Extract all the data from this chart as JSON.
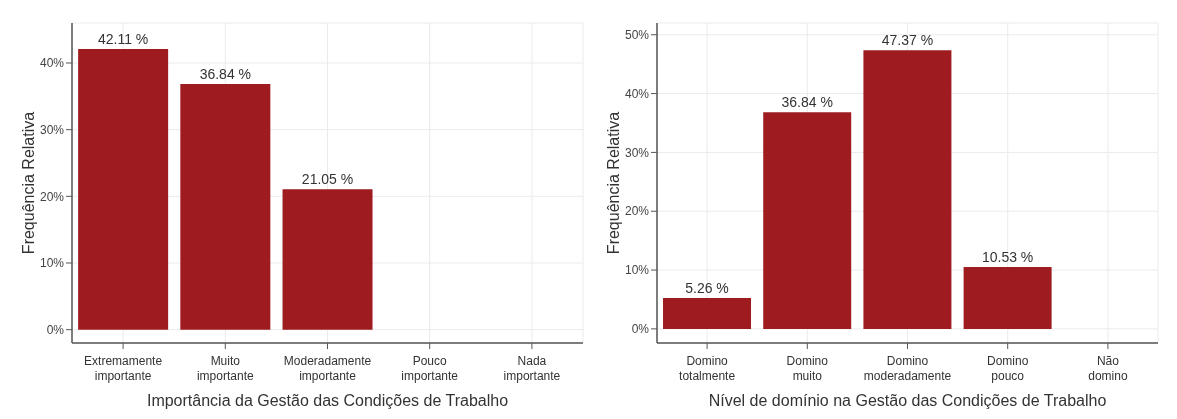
{
  "chart_data": [
    {
      "type": "bar",
      "xlabel": "Importância da Gestão das Condições de Trabalho",
      "ylabel": "Frequência Relativa",
      "categories": [
        "Extremamente importante",
        "Muito importante",
        "Moderadamente importante",
        "Pouco importante",
        "Nada importante"
      ],
      "values": [
        42.11,
        36.84,
        21.05,
        0,
        0
      ],
      "color": "#9e1c20",
      "value_labels": [
        "42.11 %",
        "36.84 %",
        "21.05 %",
        null,
        null
      ],
      "ylim": [
        -2,
        46
      ],
      "yticks": [
        {
          "value": 0,
          "label": "0%"
        },
        {
          "value": 10,
          "label": "10%"
        },
        {
          "value": 20,
          "label": "20%"
        },
        {
          "value": 30,
          "label": "30%"
        },
        {
          "value": 40,
          "label": "40%"
        }
      ],
      "grid": true,
      "legend": false
    },
    {
      "type": "bar",
      "xlabel": "Nível de domínio na Gestão das Condições de Trabalho",
      "ylabel": "Frequência Relativa",
      "categories": [
        "Domino totalmente",
        "Domino muito",
        "Domino moderadamente",
        "Domino pouco",
        "Não domino"
      ],
      "values": [
        5.26,
        36.84,
        47.37,
        10.53,
        0
      ],
      "color": "#9e1c20",
      "value_labels": [
        "5.26 %",
        "36.84 %",
        "47.37 %",
        "10.53 %",
        null
      ],
      "ylim": [
        -2.4,
        52
      ],
      "yticks": [
        {
          "value": 0,
          "label": "0%"
        },
        {
          "value": 10,
          "label": "10%"
        },
        {
          "value": 20,
          "label": "20%"
        },
        {
          "value": 30,
          "label": "30%"
        },
        {
          "value": 40,
          "label": "40%"
        },
        {
          "value": 50,
          "label": "50%"
        }
      ],
      "grid": true,
      "legend": false
    }
  ]
}
